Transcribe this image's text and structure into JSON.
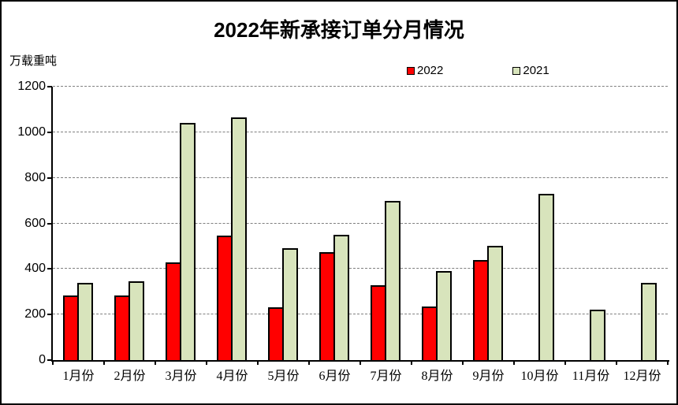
{
  "chart_data": {
    "type": "bar",
    "title": "2022年新承接订单分月情况",
    "ylabel": "万载重吨",
    "xlabel": "",
    "categories": [
      "1月份",
      "2月份",
      "3月份",
      "4月份",
      "5月份",
      "6月份",
      "7月份",
      "8月份",
      "9月份",
      "10月份",
      "11月份",
      "12月份"
    ],
    "series": [
      {
        "name": "2022",
        "color": "#ff0000",
        "values": [
          285,
          285,
          430,
          545,
          230,
          475,
          330,
          235,
          440,
          null,
          null,
          null
        ]
      },
      {
        "name": "2021",
        "color": "#d8e4bc",
        "values": [
          340,
          345,
          1040,
          1065,
          490,
          550,
          700,
          390,
          500,
          730,
          220,
          340
        ]
      }
    ],
    "ylim": [
      0,
      1200
    ],
    "ytick_step": 200,
    "grid": "horizontal-dotted",
    "gridline_color": "#7f7f7f",
    "bar_border_color": "#000000",
    "axis_color": "#000000",
    "legend_position": "top-center",
    "frame_border_color": "#000000",
    "background_color": "#ffffff"
  }
}
